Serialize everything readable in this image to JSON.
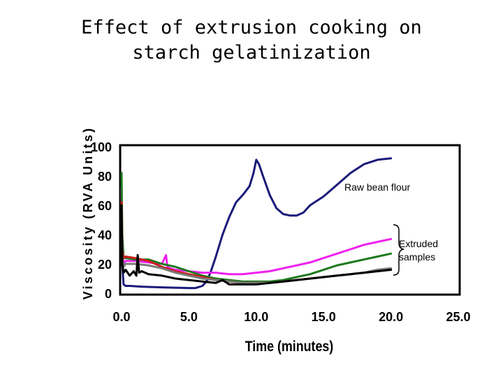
{
  "slide": {
    "title_line1": "Effect of extrusion cooking on",
    "title_line2": "starch gelatinization"
  },
  "chart_data": {
    "type": "line",
    "title": "",
    "xlabel": "Time (minutes)",
    "ylabel": "Viscosity (RVA Units)",
    "xlim": [
      0,
      25
    ],
    "ylim": [
      0,
      100
    ],
    "x_ticks": [
      "0.0",
      "5.0",
      "10.0",
      "15.0",
      "20.0",
      "25.0"
    ],
    "x_tick_values": [
      0,
      5,
      10,
      15,
      20,
      25
    ],
    "y_ticks": [
      "0",
      "20",
      "40",
      "60",
      "80",
      "100"
    ],
    "y_tick_values": [
      0,
      20,
      40,
      60,
      80,
      100
    ],
    "grid": false,
    "annotations": {
      "raw": "Raw bean flour",
      "extruded_line1": "Extruded",
      "extruded_line2": "samples"
    },
    "series": [
      {
        "color": "#1a1a7a",
        "x": [
          0,
          0.05,
          0.15,
          0.3,
          0.6,
          1.5,
          3,
          5,
          5.5,
          6,
          6.3,
          6.6,
          7,
          7.5,
          8,
          8.5,
          9,
          9.5,
          9.8,
          10,
          10.2,
          10.5,
          11,
          11.5,
          12,
          12.5,
          13,
          13.5,
          14,
          15,
          16,
          17,
          18,
          19,
          20
        ],
        "y": [
          65,
          20,
          6,
          5,
          5,
          4.5,
          4,
          3.5,
          3.5,
          5,
          8,
          14,
          25,
          40,
          52,
          62,
          67,
          73,
          82,
          91,
          88,
          80,
          67,
          58,
          54,
          53,
          53,
          55,
          60,
          66,
          74,
          82,
          88,
          91,
          92
        ]
      },
      {
        "color": "#ee22ee",
        "x": [
          0,
          0.05,
          0.15,
          0.3,
          1,
          2,
          3,
          3.3,
          3.4,
          3.6,
          4,
          5,
          6,
          7,
          8,
          9,
          10,
          11,
          12,
          13,
          14,
          15,
          16,
          17,
          18,
          19,
          20
        ],
        "y": [
          72,
          30,
          20,
          22,
          22,
          21,
          20,
          26,
          18,
          17,
          16,
          15,
          14,
          14,
          13,
          13,
          14,
          15,
          17,
          19,
          21,
          24,
          27,
          30,
          33,
          35,
          37
        ]
      },
      {
        "color": "#1e7a1e",
        "x": [
          0,
          0.05,
          0.15,
          0.3,
          1,
          2,
          3,
          4,
          5,
          6,
          7,
          8,
          9,
          10,
          11,
          12,
          13,
          14,
          15,
          16,
          17,
          18,
          19,
          20
        ],
        "y": [
          82,
          40,
          24,
          24,
          23,
          23,
          20,
          18,
          15,
          12,
          10,
          9,
          8,
          8,
          8,
          9,
          11,
          13,
          16,
          19,
          21,
          23,
          25,
          27
        ]
      },
      {
        "color": "#cc1e1e",
        "x": [
          0,
          0.05,
          0.15,
          0.3,
          1,
          2,
          3,
          4,
          5,
          6,
          7,
          8,
          9,
          10,
          11,
          12,
          13,
          14,
          15,
          16,
          17,
          18,
          19,
          20
        ],
        "y": [
          62,
          30,
          24,
          25,
          24,
          22,
          18,
          15,
          13,
          11,
          9,
          8,
          7,
          7,
          7,
          8,
          9,
          10,
          11,
          12,
          13,
          14,
          15,
          16
        ]
      },
      {
        "color": "#7a7a7a",
        "x": [
          0,
          0.05,
          0.15,
          0.3,
          1,
          2,
          3,
          4,
          5,
          6,
          7,
          8,
          9,
          10,
          11,
          12,
          13,
          14,
          15,
          16,
          17,
          18,
          19,
          20
        ],
        "y": [
          55,
          25,
          18,
          20,
          20,
          19,
          17,
          14,
          12,
          10,
          9,
          8,
          7,
          7,
          7,
          8,
          9,
          10,
          11,
          12,
          13,
          14,
          16,
          17
        ]
      },
      {
        "color": "#000000",
        "x": [
          0,
          0.05,
          0.15,
          0.3,
          0.6,
          0.9,
          1.1,
          1.2,
          1.3,
          1.5,
          2,
          3,
          4,
          5,
          6,
          7,
          7.5,
          8,
          9,
          10,
          11,
          12,
          13,
          14,
          15,
          16,
          17,
          18,
          19,
          20
        ],
        "y": [
          60,
          20,
          14,
          16,
          12,
          15,
          12,
          26,
          14,
          15,
          13,
          12,
          10,
          9,
          8,
          7,
          9,
          6,
          6,
          6,
          7,
          8,
          9,
          10,
          11,
          12,
          13,
          14,
          15,
          16
        ]
      }
    ]
  }
}
